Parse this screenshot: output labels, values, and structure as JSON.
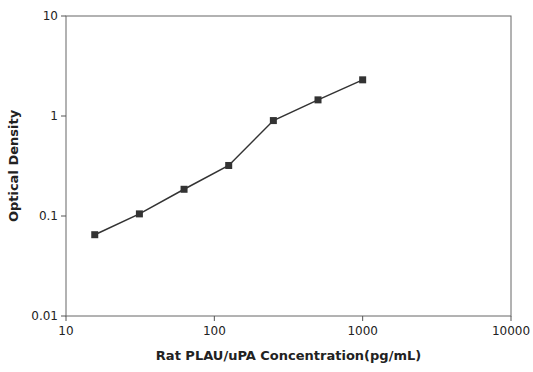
{
  "chart_data": {
    "type": "line",
    "x": [
      15.625,
      31.25,
      62.5,
      125,
      250,
      500,
      1000
    ],
    "values": [
      0.065,
      0.105,
      0.185,
      0.32,
      0.9,
      1.45,
      2.3
    ],
    "xlabel": "Rat PLAU/uPA Concentration(pg/mL)",
    "ylabel": "Optical Density",
    "xlim": [
      10,
      10000
    ],
    "ylim": [
      0.01,
      10
    ],
    "xticks": [
      10,
      100,
      1000,
      10000
    ],
    "yticks": [
      0.01,
      0.1,
      1,
      10
    ],
    "log": true,
    "color": "#333333",
    "marker": "square"
  }
}
